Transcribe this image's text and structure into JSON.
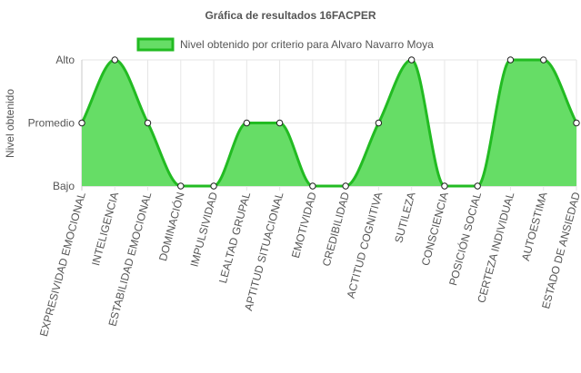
{
  "chart_data": {
    "type": "area",
    "title": "Gráfica de resultados 16FACPER",
    "ylabel": "Nivel obtenido",
    "xlabel": "",
    "y_levels": [
      "Bajo",
      "Promedio",
      "Alto"
    ],
    "ylim": [
      0,
      2
    ],
    "categories": [
      "EXPRESIVIDAD EMOCIONAL",
      "INTELIGENCIA",
      "ESTABILIDAD EMOCIONAL",
      "DOMINACIÓN",
      "IMPULSIVIDAD",
      "LEALTAD GRUPAL",
      "APTITUD SITUACIONAL",
      "EMOTIVIDAD",
      "CREDIBILIDAD",
      "ACTITUD COGNITIVA",
      "SUTILEZA",
      "CONSCIENCIA",
      "POSICIÓN SOCIAL",
      "CERTEZA INDIVIDUAL",
      "AUTOESTIMA",
      "ESTADO DE ANSIEDAD"
    ],
    "series": [
      {
        "name": "Nivel obtenido por criterio para Alvaro Navarro Moya",
        "values": [
          1,
          2,
          1,
          0,
          0,
          1,
          1,
          0,
          0,
          1,
          2,
          0,
          0,
          2,
          2,
          1
        ],
        "fill_color": "#66dd66",
        "line_color": "#22bb22"
      }
    ],
    "legend_position": "top",
    "grid": true
  }
}
